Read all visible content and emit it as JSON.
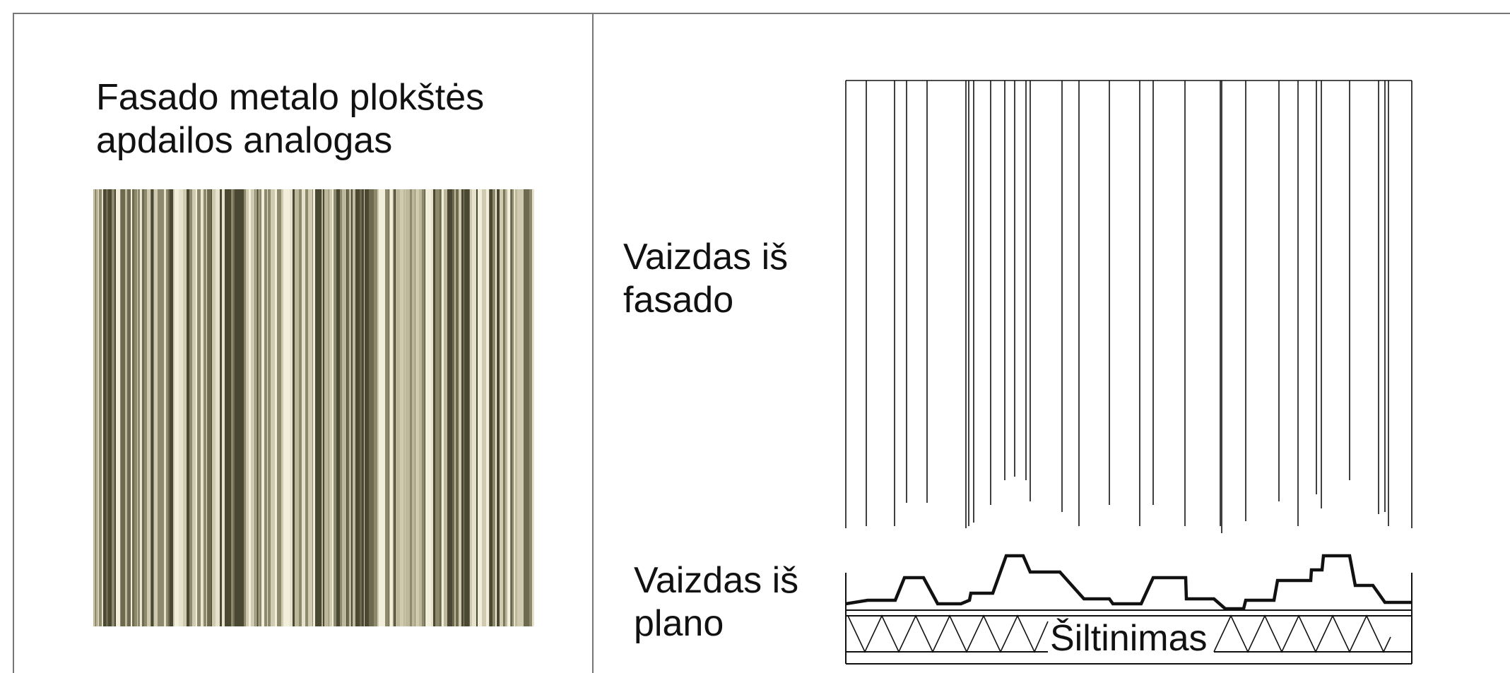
{
  "labels": {
    "title": "Fasado metalo plokštės\napdailos analogas",
    "facade_view": "Vaizdas iš\nfasado",
    "plan_view": "Vaizdas iš\nplano",
    "insulation": "Šiltinimas"
  },
  "colors": {
    "line": "#111111",
    "frame": "#777777",
    "panel_light": "#e6e2cc",
    "panel_mid": "#a8a488",
    "panel_dark": "#4a4732"
  }
}
